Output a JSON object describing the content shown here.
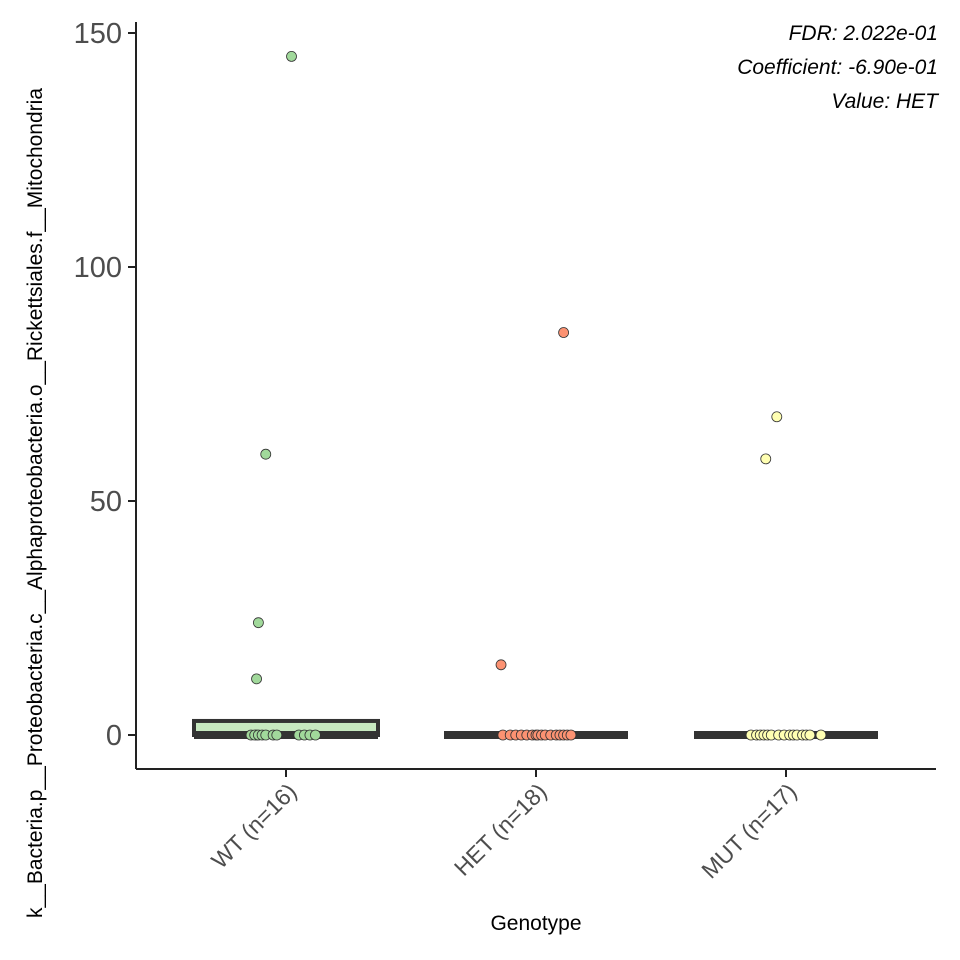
{
  "chart_data": {
    "type": "box",
    "title": "",
    "xlabel": "Genotype",
    "ylabel": "k__Bacteria.p__Proteobacteria.c__Alphaproteobacteria.o__Rickettsiales.f__Mitochondria",
    "ylim": [
      -7,
      152
    ],
    "yticks": [
      0,
      50,
      100,
      150
    ],
    "categories": [
      "WT (n=16)",
      "HET (n=18)",
      "MUT (n=17)"
    ],
    "annotations": [
      "FDR: 2.022e-01",
      "Coefficient: -6.90e-01",
      "Value: HET"
    ],
    "boxes": [
      {
        "category": "WT (n=16)",
        "q1": 0,
        "median": 0,
        "q3": 3,
        "fill": "#c7e9c0"
      },
      {
        "category": "HET (n=18)",
        "q1": 0,
        "median": 0,
        "q3": 0,
        "fill": "#fcbba1"
      },
      {
        "category": "MUT (n=17)",
        "q1": 0,
        "median": 0,
        "q3": 0,
        "fill": "#ffffcc"
      }
    ],
    "series": [
      {
        "name": "WT (n=16)",
        "color": "#a1d99b",
        "x_jitter": [
          0.89,
          1.03,
          0.85,
          0.84,
          0.84,
          0.81,
          0.83,
          0.85,
          0.87,
          0.89,
          0.93,
          0.95,
          1.07,
          1.1,
          1.13,
          1.16
        ],
        "values": [
          60,
          145,
          24,
          12,
          0,
          0,
          0,
          0,
          0,
          0,
          0,
          0,
          0,
          0,
          0,
          0
        ]
      },
      {
        "name": "HET (n=18)",
        "color": "#fc9272",
        "x_jitter": [
          0.81,
          1.15,
          0.82,
          0.86,
          0.89,
          0.92,
          0.95,
          0.98,
          1.0,
          1.01,
          1.03,
          1.05,
          1.08,
          1.11,
          1.13,
          1.15,
          1.17,
          1.19
        ],
        "values": [
          15,
          86,
          0,
          0,
          0,
          0,
          0,
          0,
          0,
          0,
          0,
          0,
          0,
          0,
          0,
          0,
          0,
          0
        ]
      },
      {
        "name": "MUT (n=17)",
        "color": "#ffffb2",
        "x_jitter": [
          0.89,
          0.95,
          0.81,
          0.84,
          0.86,
          0.88,
          0.9,
          0.92,
          0.96,
          0.99,
          1.02,
          1.04,
          1.06,
          1.09,
          1.11,
          1.13,
          1.19
        ],
        "values": [
          59,
          68,
          0,
          0,
          0,
          0,
          0,
          0,
          0,
          0,
          0,
          0,
          0,
          0,
          0,
          0,
          0
        ]
      }
    ]
  }
}
